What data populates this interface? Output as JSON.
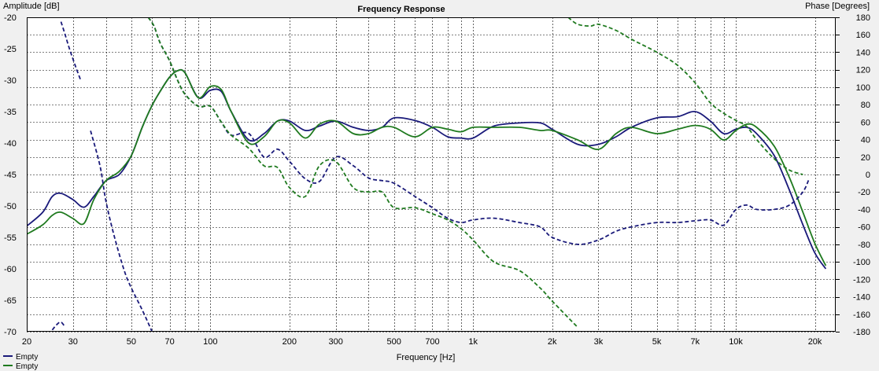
{
  "chart_data": {
    "type": "line",
    "title": "Frequency Response",
    "xlabel": "Frequency [Hz]",
    "ylabel_left": "Amplitude [dB]",
    "ylabel_right": "Phase [Degrees]",
    "x_scale": "log",
    "xlim": [
      20,
      24000
    ],
    "ylim_left": [
      -70,
      -20
    ],
    "ylim_right": [
      -180,
      180
    ],
    "x_tick_labels": [
      "20",
      "30",
      "50",
      "70",
      "100",
      "200",
      "300",
      "500",
      "700",
      "1k",
      "2k",
      "3k",
      "5k",
      "7k",
      "10k",
      "20k"
    ],
    "x_tick_values": [
      20,
      30,
      50,
      70,
      100,
      200,
      300,
      500,
      700,
      1000,
      2000,
      3000,
      5000,
      7000,
      10000,
      20000
    ],
    "y_left_ticks": [
      -20,
      -25,
      -30,
      -35,
      -40,
      -45,
      -50,
      -55,
      -60,
      -65,
      -70
    ],
    "y_right_ticks": [
      180,
      160,
      140,
      120,
      100,
      80,
      60,
      40,
      20,
      0,
      -20,
      -40,
      -60,
      -80,
      -100,
      -120,
      -140,
      -160,
      -180
    ],
    "grid": true,
    "legend_position": "bottom-left",
    "series": [
      {
        "name": "Empty",
        "kind": "amplitude",
        "axis": "left",
        "color": "#1a1a7a",
        "dash": "solid",
        "x": [
          20,
          23,
          25,
          27,
          30,
          33,
          36,
          40,
          45,
          50,
          55,
          60,
          65,
          70,
          75,
          80,
          90,
          100,
          110,
          120,
          140,
          160,
          180,
          200,
          230,
          260,
          300,
          350,
          400,
          450,
          500,
          600,
          700,
          800,
          900,
          1000,
          1200,
          1500,
          1800,
          2000,
          2500,
          3000,
          3500,
          4000,
          5000,
          6000,
          7000,
          8000,
          9000,
          10000,
          11000,
          12000,
          14000,
          16000,
          18000,
          20000,
          22000
        ],
        "y": [
          -53.2,
          -51,
          -48.5,
          -48,
          -49,
          -50.2,
          -48.5,
          -46,
          -45,
          -42,
          -37.5,
          -34,
          -31.5,
          -29.5,
          -28.5,
          -28.8,
          -32.8,
          -31.6,
          -31.8,
          -35,
          -39.5,
          -38.5,
          -36.5,
          -36.5,
          -38,
          -37.3,
          -36.5,
          -37.5,
          -38,
          -37.5,
          -36,
          -36.4,
          -37.5,
          -39,
          -39.2,
          -39.2,
          -37.3,
          -36.8,
          -36.8,
          -37.8,
          -40.2,
          -40.2,
          -39,
          -37.5,
          -36,
          -35.8,
          -35,
          -36.5,
          -38.5,
          -37.8,
          -37.5,
          -38.5,
          -42,
          -47.5,
          -53,
          -57.5,
          -60
        ]
      },
      {
        "name": "Empty",
        "kind": "amplitude",
        "axis": "left",
        "color": "#1f7a1f",
        "dash": "solid",
        "x": [
          20,
          23,
          25,
          27,
          30,
          33,
          36,
          40,
          45,
          50,
          55,
          60,
          65,
          70,
          75,
          80,
          90,
          100,
          110,
          120,
          140,
          160,
          180,
          200,
          230,
          260,
          300,
          350,
          400,
          450,
          500,
          600,
          700,
          800,
          900,
          1000,
          1200,
          1500,
          1800,
          2000,
          2500,
          3000,
          3500,
          4000,
          5000,
          6000,
          7000,
          8000,
          9000,
          10000,
          11000,
          12000,
          14000,
          16000,
          18000,
          20000,
          22000
        ],
        "y": [
          -54.5,
          -53,
          -51.5,
          -51,
          -52,
          -52.8,
          -49,
          -46,
          -44.5,
          -42,
          -37.5,
          -34,
          -31.5,
          -29.5,
          -28.5,
          -28.8,
          -32.8,
          -31,
          -31.5,
          -35,
          -40,
          -39,
          -36.5,
          -36.8,
          -39.2,
          -37,
          -36.5,
          -38.5,
          -38.5,
          -37.5,
          -37.5,
          -39,
          -37.5,
          -37.8,
          -38.2,
          -37.5,
          -37.5,
          -37.5,
          -38,
          -38,
          -39.5,
          -41,
          -38.5,
          -37.5,
          -38.5,
          -37.8,
          -37.2,
          -37.8,
          -39.5,
          -38,
          -37,
          -37.5,
          -40.5,
          -45.5,
          -51,
          -56,
          -59.5
        ]
      },
      {
        "name": "Empty",
        "kind": "phase",
        "axis": "right",
        "color": "#1a1a7a",
        "dash": "dashed",
        "segments": [
          {
            "x": [
              27,
              28,
              29,
              30,
              31,
              32
            ],
            "y": [
              175,
              160,
              145,
              132,
              120,
              109
            ]
          },
          {
            "x": [
              25,
              26,
              27,
              28
            ],
            "y": [
              -178,
              -172,
              -169,
              -175
            ]
          },
          {
            "x": [
              35,
              38,
              40,
              43,
              47,
              50,
              55,
              60
            ],
            "y": [
              50,
              10,
              -30,
              -70,
              -110,
              -130,
              -155,
              -180
            ]
          },
          {
            "x": [
              58,
              61,
              63,
              65,
              70,
              75,
              80,
              90,
              100,
              110,
              120,
              140,
              160,
              180,
              200,
              230,
              260,
              300,
              350,
              400,
              450,
              500,
              600,
              700,
              800,
              900,
              1000,
              1200,
              1500,
              1800,
              2000,
              2500,
              3000,
              3500,
              4000,
              5000,
              6000,
              7000,
              8000,
              9000,
              10000,
              11000,
              12000,
              14000,
              16000,
              18000,
              19000
            ],
            "y": [
              180,
              170,
              158,
              148,
              130,
              108,
              92,
              78,
              78,
              60,
              45,
              47,
              20,
              29,
              15,
              -5,
              -8,
              20,
              10,
              -4,
              -7,
              -10,
              -25,
              -38,
              -50,
              -55,
              -52,
              -50,
              -55,
              -60,
              -72,
              -80,
              -75,
              -65,
              -60,
              -55,
              -55,
              -53,
              -52,
              -58,
              -40,
              -35,
              -40,
              -40,
              -35,
              -20,
              -5
            ]
          }
        ]
      },
      {
        "name": "Empty",
        "kind": "phase",
        "axis": "right",
        "color": "#1f7a1f",
        "dash": "dashed",
        "segments": [
          {
            "x": [
              58,
              61,
              63,
              65,
              70,
              75,
              80,
              90,
              100,
              110,
              120,
              140,
              160,
              180,
              200,
              230,
              260,
              300,
              350,
              400,
              450,
              500,
              600,
              700,
              800,
              900,
              1000,
              1200,
              1500,
              1800,
              2000,
              2500
            ],
            "y": [
              180,
              170,
              158,
              148,
              130,
              108,
              92,
              78,
              78,
              60,
              45,
              30,
              10,
              8,
              -15,
              -25,
              10,
              15,
              -15,
              -20,
              -20,
              -38,
              -38,
              -45,
              -52,
              -62,
              -75,
              -100,
              -110,
              -130,
              -145,
              -175
            ]
          },
          {
            "x": [
              2300,
              2500,
              2800,
              3000,
              3500,
              4000,
              5000,
              6000,
              7000,
              8000,
              9000,
              10000,
              11000,
              12000,
              14000,
              16000,
              18000
            ],
            "y": [
              180,
              172,
              170,
              172,
              165,
              155,
              140,
              125,
              105,
              82,
              70,
              62,
              55,
              40,
              18,
              5,
              0
            ]
          }
        ]
      }
    ]
  },
  "legend": [
    {
      "label": "Empty",
      "color": "#1a1a7a"
    },
    {
      "label": "Empty",
      "color": "#1f7a1f"
    }
  ]
}
